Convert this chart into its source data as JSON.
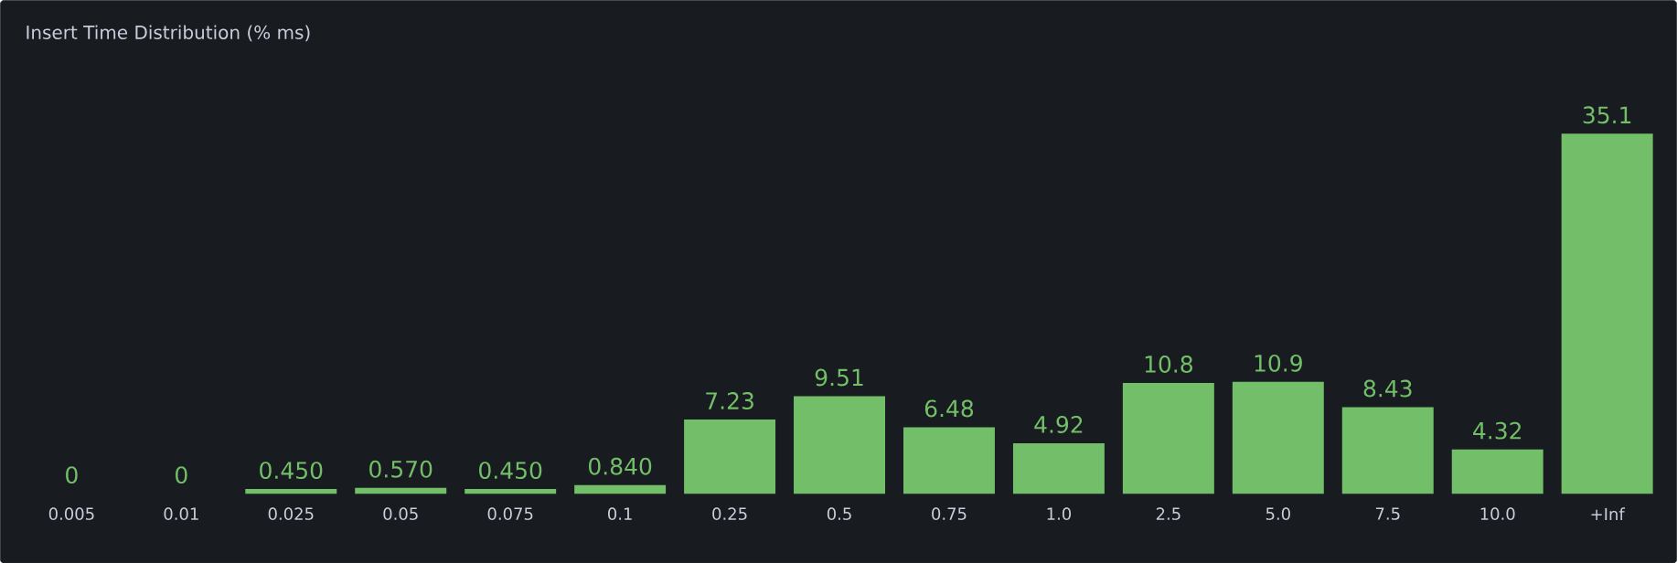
{
  "chart_data": {
    "type": "bar",
    "title": "Insert Time Distribution (% ms)",
    "categories": [
      "0.005",
      "0.01",
      "0.025",
      "0.05",
      "0.075",
      "0.1",
      "0.25",
      "0.5",
      "0.75",
      "1.0",
      "2.5",
      "5.0",
      "7.5",
      "10.0",
      "+Inf"
    ],
    "values": [
      0,
      0,
      0.45,
      0.57,
      0.45,
      0.84,
      7.23,
      9.51,
      6.48,
      4.92,
      10.8,
      10.9,
      8.43,
      4.32,
      35.1
    ],
    "value_labels": [
      "0",
      "0",
      "0.450",
      "0.570",
      "0.450",
      "0.840",
      "7.23",
      "9.51",
      "6.48",
      "4.92",
      "10.8",
      "10.9",
      "8.43",
      "4.32",
      "35.1"
    ],
    "color": "#73bf69",
    "ylim": [
      0,
      35.1
    ]
  }
}
